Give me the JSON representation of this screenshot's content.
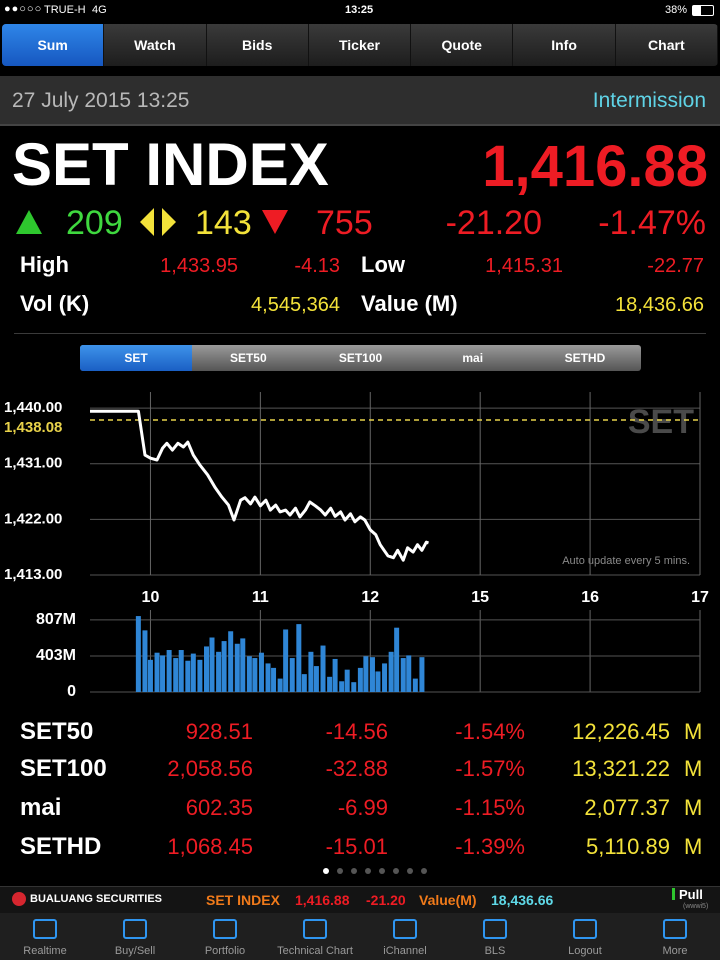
{
  "status_bar": {
    "carrier": "TRUE-H",
    "network": "4G",
    "time": "13:25",
    "battery": "38%"
  },
  "tabs": [
    "Sum",
    "Watch",
    "Bids",
    "Ticker",
    "Quote",
    "Info",
    "Chart"
  ],
  "date_bar": {
    "datetime": "27 July 2015 13:25",
    "status": "Intermission"
  },
  "index": {
    "name": "SET INDEX",
    "last": "1,416.88",
    "advances": "209",
    "unchanged": "143",
    "declines": "755",
    "change": "-21.20",
    "percent_change": "-1.47%",
    "high_label": "High",
    "high": "1,433.95",
    "high_change": "-4.13",
    "low_label": "Low",
    "low": "1,415.31",
    "low_change": "-22.77",
    "volume_label": "Vol (K)",
    "volume": "4,545,364",
    "value_label": "Value (M)",
    "value": "18,436.66"
  },
  "market_tabs": [
    "SET",
    "SET50",
    "SET100",
    "mai",
    "SETHD"
  ],
  "chart": {
    "type": "line",
    "watermark": "SET",
    "note": "Auto update every 5 mins.",
    "xlim": [
      9.45,
      15
    ],
    "xticks": [
      10,
      11,
      12,
      {
        "value": 13,
        "label": "15"
      },
      {
        "value": 14,
        "label": "16"
      },
      {
        "value": 15,
        "label": "17"
      }
    ],
    "ylim": [
      1413,
      1442.6
    ],
    "yticks": [
      {
        "value": 1440,
        "label": "1,440.00"
      },
      {
        "value": 1431,
        "label": "1,431.00"
      },
      {
        "value": 1422,
        "label": "1,422.00"
      },
      {
        "value": 1413,
        "label": "1,413.00"
      }
    ],
    "grid": true,
    "reference": {
      "value": 1438.08,
      "label": "1,438.08",
      "color": "#e8d24a"
    },
    "series": [
      {
        "color": "#ffffff",
        "x": [
          9.45,
          9.89,
          9.95,
          10.0,
          10.06,
          10.11,
          10.15,
          10.2,
          10.25,
          10.3,
          10.34,
          10.39,
          10.45,
          10.52,
          10.59,
          10.65,
          10.71,
          10.76,
          10.82,
          10.86,
          10.91,
          10.95,
          11.0,
          11.05,
          11.09,
          11.14,
          11.18,
          11.23,
          11.27,
          11.32,
          11.36,
          11.41,
          11.45,
          11.5,
          11.55,
          11.59,
          11.64,
          11.68,
          11.73,
          11.77,
          11.82,
          11.86,
          11.91,
          11.95,
          12.0,
          12.05,
          12.09,
          12.16,
          12.21,
          12.25,
          12.3,
          12.34,
          12.39,
          12.43,
          12.47,
          12.51,
          12.53
        ],
        "values": [
          1439.5,
          1439.5,
          1432.4,
          1431.9,
          1431.6,
          1433.5,
          1434.3,
          1433.2,
          1434.3,
          1433.7,
          1434.5,
          1432.4,
          1430.8,
          1429.2,
          1427.1,
          1425.6,
          1424.3,
          1421.9,
          1425.1,
          1425.5,
          1424.5,
          1425.6,
          1424.2,
          1425.1,
          1423.5,
          1424.3,
          1423.2,
          1423.5,
          1422.7,
          1423.8,
          1422.4,
          1423.5,
          1424.8,
          1424.2,
          1423.5,
          1422.7,
          1423.8,
          1422.5,
          1423.2,
          1421.9,
          1422.9,
          1421.6,
          1422.4,
          1421.9,
          1420.3,
          1419.5,
          1417.9,
          1416.1,
          1415.8,
          1417.0,
          1415.4,
          1417.4,
          1416.7,
          1417.9,
          1417.0,
          1418.3,
          1418.2
        ]
      }
    ],
    "volume": {
      "ylim": [
        0,
        918
      ],
      "yticks": [
        {
          "value": 807,
          "label": "807M"
        },
        {
          "value": 403,
          "label": "403M"
        },
        0
      ],
      "color": "#2f86d6",
      "x": [
        9.89,
        9.95,
        10.0,
        10.06,
        10.11,
        10.17,
        10.23,
        10.28,
        10.34,
        10.39,
        10.45,
        10.51,
        10.56,
        10.62,
        10.67,
        10.73,
        10.79,
        10.84,
        10.9,
        10.95,
        11.01,
        11.07,
        11.12,
        11.18,
        11.23,
        11.29,
        11.35,
        11.4,
        11.46,
        11.51,
        11.57,
        11.63,
        11.68,
        11.74,
        11.79,
        11.85,
        11.91,
        11.96,
        12.02,
        12.07,
        12.13,
        12.19,
        12.24,
        12.3,
        12.35,
        12.41,
        12.47
      ],
      "values": [
        850,
        690,
        360,
        440,
        410,
        470,
        380,
        470,
        350,
        430,
        360,
        510,
        610,
        450,
        570,
        680,
        540,
        600,
        400,
        380,
        440,
        320,
        270,
        150,
        700,
        380,
        760,
        200,
        450,
        290,
        520,
        170,
        370,
        120,
        250,
        110,
        270,
        400,
        390,
        230,
        320,
        450,
        720,
        380,
        410,
        150,
        390
      ]
    }
  },
  "sub_indices": [
    [
      "SET50",
      "928.51",
      "-14.56",
      "-1.54%",
      "12,226.45",
      "M"
    ],
    [
      "SET100",
      "2,058.56",
      "-32.88",
      "-1.57%",
      "13,321.22",
      "M"
    ],
    [
      "mai",
      "602.35",
      "-6.99",
      "-1.15%",
      "2,077.37",
      "M"
    ],
    [
      "SETHD",
      "1,068.45",
      "-15.01",
      "-1.39%",
      "5,110.89",
      "M"
    ]
  ],
  "ticker_bar": {
    "broker": "BUALUANG SECURITIES",
    "index": "SET INDEX",
    "last": "1,416.88",
    "change": "-21.20",
    "value_label": "Value(M)",
    "value": "18,436.66",
    "pull": "Pull",
    "pull_id": "(wwwi5)"
  },
  "nav": [
    "Realtime",
    "Buy/Sell",
    "Portfolio",
    "Technical Chart",
    "iChannel",
    "BLS",
    "Logout",
    "More"
  ]
}
